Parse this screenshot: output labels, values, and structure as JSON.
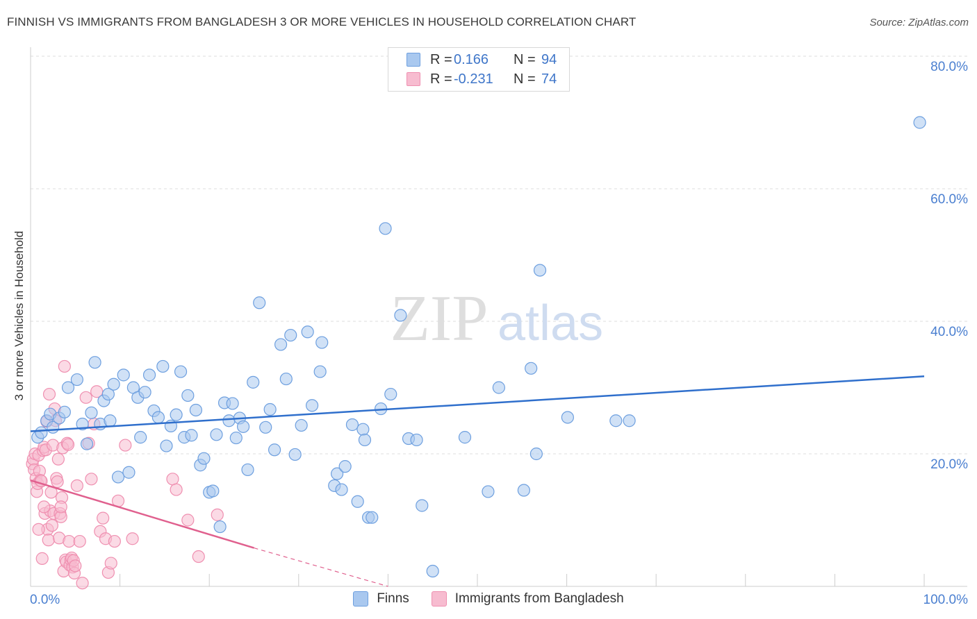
{
  "title": "FINNISH VS IMMIGRANTS FROM BANGLADESH 3 OR MORE VEHICLES IN HOUSEHOLD CORRELATION CHART",
  "source": "Source: ZipAtlas.com",
  "watermark": {
    "zip": "ZIP",
    "atlas": "atlas"
  },
  "legend_top": [
    {
      "r_label": "R =",
      "r_value": "0.166",
      "n_label": "N =",
      "n_value": "94"
    },
    {
      "r_label": "R =",
      "r_value": "-0.231",
      "n_label": "N =",
      "n_value": "74"
    }
  ],
  "legend_bottom": [
    "Finns",
    "Immigrants from Bangladesh"
  ],
  "colors": {
    "finns_fill": "#a9c8ef",
    "finns_stroke": "#6d9fdf",
    "finns_line": "#2f6fcc",
    "bang_fill": "#f7bcd0",
    "bang_stroke": "#ef8fb0",
    "bang_line": "#e0608e",
    "axis_text": "#4a7fd0",
    "grid": "#dddddd"
  },
  "chart_data": {
    "type": "scatter",
    "title": "FINNISH VS IMMIGRANTS FROM BANGLADESH 3 OR MORE VEHICLES IN HOUSEHOLD CORRELATION CHART",
    "xlabel": "",
    "ylabel": "3 or more Vehicles in Household",
    "xlim": [
      0,
      100
    ],
    "ylim": [
      0,
      80
    ],
    "x_ticks": [
      "0.0%",
      "100.0%"
    ],
    "y_ticks": [
      {
        "value": 20,
        "label": "20.0%"
      },
      {
        "value": 40,
        "label": "40.0%"
      },
      {
        "value": 60,
        "label": "60.0%"
      },
      {
        "value": 80,
        "label": "80.0%"
      }
    ],
    "series": [
      {
        "name": "Finns",
        "trend": {
          "x": [
            0,
            100
          ],
          "y": [
            23.4,
            31.7
          ]
        },
        "points": [
          [
            0.8,
            22.5
          ],
          [
            1.2,
            23.2
          ],
          [
            1.8,
            25.0
          ],
          [
            2.2,
            26.0
          ],
          [
            2.5,
            24.0
          ],
          [
            3.2,
            25.4
          ],
          [
            3.8,
            26.3
          ],
          [
            4.2,
            30.0
          ],
          [
            5.2,
            31.2
          ],
          [
            5.8,
            24.5
          ],
          [
            6.3,
            21.5
          ],
          [
            6.8,
            26.2
          ],
          [
            7.2,
            33.8
          ],
          [
            7.8,
            24.5
          ],
          [
            8.2,
            28.0
          ],
          [
            8.7,
            29.0
          ],
          [
            8.9,
            25.0
          ],
          [
            9.3,
            30.5
          ],
          [
            9.8,
            16.5
          ],
          [
            10.4,
            31.9
          ],
          [
            11.0,
            17.2
          ],
          [
            11.5,
            30.0
          ],
          [
            12.0,
            28.5
          ],
          [
            12.3,
            22.5
          ],
          [
            12.8,
            29.3
          ],
          [
            13.3,
            31.9
          ],
          [
            13.8,
            26.5
          ],
          [
            14.3,
            25.5
          ],
          [
            14.8,
            33.2
          ],
          [
            15.2,
            21.2
          ],
          [
            15.7,
            24.2
          ],
          [
            16.3,
            25.9
          ],
          [
            16.8,
            32.4
          ],
          [
            17.2,
            22.5
          ],
          [
            17.6,
            28.8
          ],
          [
            18.0,
            22.8
          ],
          [
            18.5,
            26.6
          ],
          [
            19.0,
            18.3
          ],
          [
            19.4,
            19.3
          ],
          [
            20.0,
            14.2
          ],
          [
            20.4,
            14.4
          ],
          [
            20.8,
            22.9
          ],
          [
            21.2,
            9.0
          ],
          [
            21.7,
            27.7
          ],
          [
            22.2,
            25.0
          ],
          [
            22.6,
            27.6
          ],
          [
            23.0,
            22.4
          ],
          [
            23.4,
            25.4
          ],
          [
            23.8,
            24.1
          ],
          [
            24.3,
            17.6
          ],
          [
            24.9,
            30.8
          ],
          [
            25.6,
            42.8
          ],
          [
            26.3,
            24.0
          ],
          [
            26.8,
            26.7
          ],
          [
            27.3,
            20.6
          ],
          [
            28.0,
            36.5
          ],
          [
            28.6,
            31.3
          ],
          [
            29.1,
            37.9
          ],
          [
            29.6,
            19.9
          ],
          [
            30.3,
            24.3
          ],
          [
            31.0,
            38.4
          ],
          [
            31.5,
            27.3
          ],
          [
            32.4,
            32.4
          ],
          [
            32.6,
            36.8
          ],
          [
            34.0,
            15.2
          ],
          [
            34.3,
            17.0
          ],
          [
            34.8,
            14.6
          ],
          [
            35.2,
            18.1
          ],
          [
            36.0,
            24.4
          ],
          [
            36.6,
            12.8
          ],
          [
            37.2,
            23.7
          ],
          [
            37.4,
            22.1
          ],
          [
            37.8,
            10.4
          ],
          [
            38.2,
            10.4
          ],
          [
            39.2,
            26.8
          ],
          [
            39.7,
            54.0
          ],
          [
            40.3,
            29.0
          ],
          [
            41.4,
            40.9
          ],
          [
            42.3,
            22.3
          ],
          [
            43.2,
            22.1
          ],
          [
            43.8,
            12.2
          ],
          [
            45.0,
            2.3
          ],
          [
            48.6,
            22.5
          ],
          [
            51.2,
            14.3
          ],
          [
            52.4,
            30.0
          ],
          [
            55.2,
            14.5
          ],
          [
            56.0,
            32.9
          ],
          [
            56.6,
            20.0
          ],
          [
            57.0,
            47.7
          ],
          [
            60.1,
            25.5
          ],
          [
            65.5,
            25.0
          ],
          [
            67.0,
            25.0
          ],
          [
            99.5,
            70.0
          ]
        ]
      },
      {
        "name": "Immigrants from Bangladesh",
        "trend": {
          "x": [
            0,
            25
          ],
          "y": [
            16.0,
            5.8
          ]
        },
        "trend_extension": {
          "x": [
            25,
            40
          ],
          "y": [
            5.8,
            0
          ]
        },
        "points": [
          [
            0.2,
            18.5
          ],
          [
            0.3,
            19.2
          ],
          [
            0.4,
            17.6
          ],
          [
            0.5,
            20.0
          ],
          [
            0.6,
            16.3
          ],
          [
            0.7,
            14.3
          ],
          [
            0.8,
            15.5
          ],
          [
            0.9,
            19.8
          ],
          [
            1.0,
            17.4
          ],
          [
            1.1,
            16.0
          ],
          [
            1.2,
            15.9
          ],
          [
            1.3,
            4.2
          ],
          [
            1.4,
            20.5
          ],
          [
            1.5,
            21.0
          ],
          [
            1.6,
            11.0
          ],
          [
            1.7,
            20.6
          ],
          [
            1.8,
            24.9
          ],
          [
            1.9,
            8.6
          ],
          [
            2.0,
            7.0
          ],
          [
            2.1,
            29.0
          ],
          [
            2.2,
            11.4
          ],
          [
            2.3,
            14.2
          ],
          [
            2.4,
            9.2
          ],
          [
            2.5,
            21.3
          ],
          [
            2.6,
            11.0
          ],
          [
            2.7,
            26.8
          ],
          [
            2.8,
            25.0
          ],
          [
            2.9,
            16.3
          ],
          [
            3.0,
            15.8
          ],
          [
            3.1,
            19.2
          ],
          [
            3.2,
            7.3
          ],
          [
            3.3,
            11.0
          ],
          [
            3.4,
            10.5
          ],
          [
            3.5,
            13.4
          ],
          [
            3.6,
            20.9
          ],
          [
            3.7,
            2.3
          ],
          [
            3.8,
            33.2
          ],
          [
            3.9,
            4.0
          ],
          [
            4.0,
            3.7
          ],
          [
            4.1,
            21.6
          ],
          [
            4.2,
            21.4
          ],
          [
            4.3,
            6.8
          ],
          [
            4.4,
            3.2
          ],
          [
            4.5,
            4.0
          ],
          [
            4.6,
            4.3
          ],
          [
            4.7,
            2.9
          ],
          [
            4.8,
            3.9
          ],
          [
            4.9,
            2.0
          ],
          [
            5.0,
            3.1
          ],
          [
            5.2,
            15.2
          ],
          [
            5.5,
            6.8
          ],
          [
            5.8,
            0.5
          ],
          [
            6.2,
            28.5
          ],
          [
            6.5,
            21.6
          ],
          [
            6.8,
            16.2
          ],
          [
            7.1,
            24.5
          ],
          [
            7.4,
            29.4
          ],
          [
            7.8,
            8.3
          ],
          [
            8.1,
            10.3
          ],
          [
            8.4,
            7.2
          ],
          [
            8.7,
            2.1
          ],
          [
            9.0,
            3.5
          ],
          [
            9.4,
            6.8
          ],
          [
            9.8,
            12.9
          ],
          [
            10.6,
            21.3
          ],
          [
            11.4,
            7.2
          ],
          [
            15.9,
            16.2
          ],
          [
            16.3,
            14.6
          ],
          [
            17.6,
            10.0
          ],
          [
            18.8,
            4.5
          ],
          [
            20.9,
            10.8
          ],
          [
            1.5,
            12.0
          ],
          [
            3.4,
            12.0
          ],
          [
            0.9,
            8.6
          ]
        ]
      }
    ]
  }
}
